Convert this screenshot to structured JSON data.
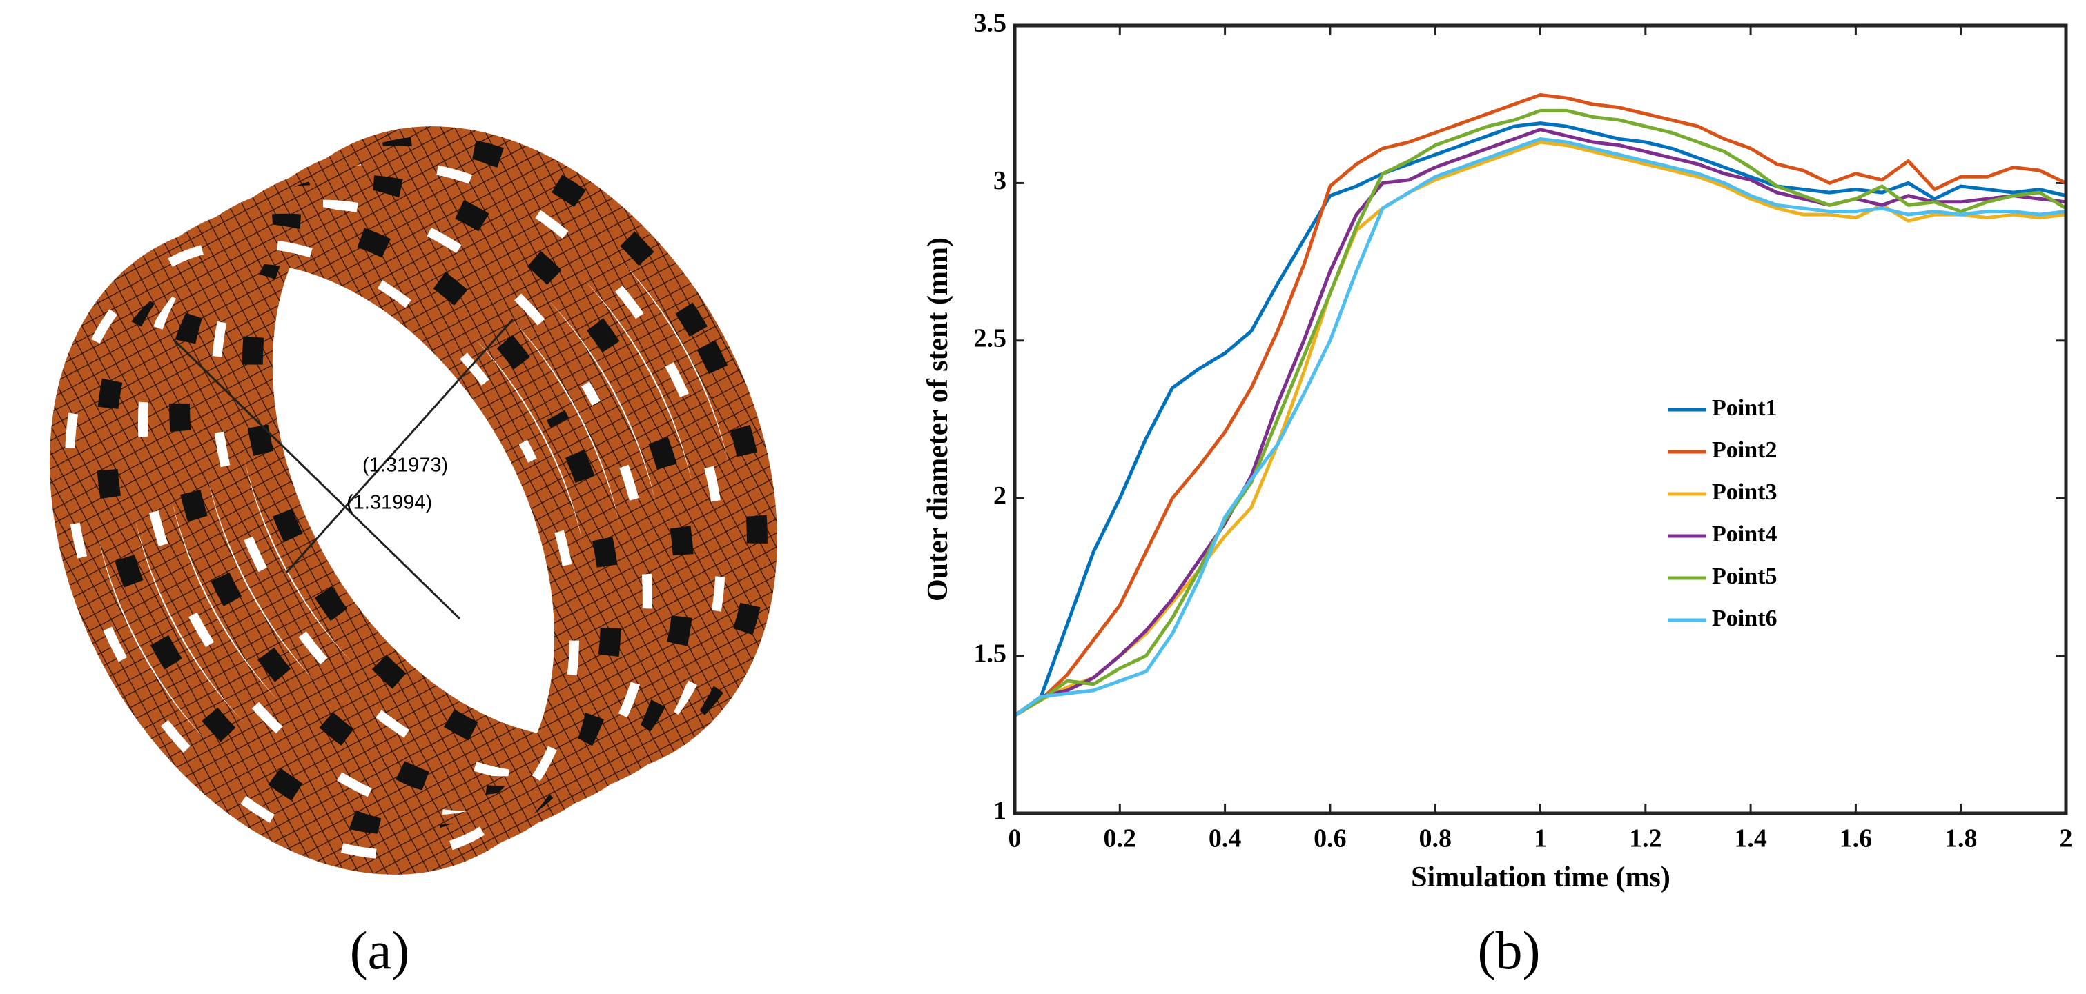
{
  "chart_data": {
    "type": "line",
    "xlabel": "Simulation time (ms)",
    "ylabel": "Outer diameter of stent (mm)",
    "x": [
      0,
      0.05,
      0.1,
      0.15,
      0.2,
      0.25,
      0.3,
      0.35,
      0.4,
      0.45,
      0.5,
      0.55,
      0.6,
      0.65,
      0.7,
      0.75,
      0.8,
      0.85,
      0.9,
      0.95,
      1,
      1.05,
      1.1,
      1.15,
      1.2,
      1.25,
      1.3,
      1.35,
      1.4,
      1.45,
      1.5,
      1.55,
      1.6,
      1.65,
      1.7,
      1.75,
      1.8,
      1.85,
      1.9,
      1.95,
      2
    ],
    "series": [
      {
        "name": "Point1",
        "color": "#0072bd",
        "values": [
          1.31,
          1.37,
          1.6,
          1.83,
          2.0,
          2.19,
          2.35,
          2.41,
          2.46,
          2.53,
          2.68,
          2.82,
          2.96,
          2.99,
          3.03,
          3.06,
          3.09,
          3.12,
          3.15,
          3.18,
          3.19,
          3.18,
          3.16,
          3.14,
          3.13,
          3.11,
          3.08,
          3.05,
          3.02,
          2.99,
          2.98,
          2.97,
          2.98,
          2.97,
          3.0,
          2.95,
          2.99,
          2.98,
          2.97,
          2.98,
          2.96
        ]
      },
      {
        "name": "Point2",
        "color": "#d95319",
        "values": [
          1.31,
          1.36,
          1.44,
          1.55,
          1.66,
          1.83,
          2.0,
          2.1,
          2.21,
          2.35,
          2.53,
          2.74,
          2.99,
          3.06,
          3.11,
          3.13,
          3.16,
          3.19,
          3.22,
          3.25,
          3.28,
          3.27,
          3.25,
          3.24,
          3.22,
          3.2,
          3.18,
          3.14,
          3.11,
          3.06,
          3.04,
          3.0,
          3.03,
          3.01,
          3.07,
          2.98,
          3.02,
          3.02,
          3.05,
          3.04,
          3.0
        ]
      },
      {
        "name": "Point3",
        "color": "#edb120",
        "values": [
          1.31,
          1.36,
          1.4,
          1.43,
          1.5,
          1.57,
          1.67,
          1.77,
          1.88,
          1.97,
          2.17,
          2.4,
          2.65,
          2.85,
          2.92,
          2.97,
          3.01,
          3.04,
          3.07,
          3.1,
          3.13,
          3.12,
          3.1,
          3.08,
          3.06,
          3.04,
          3.02,
          2.99,
          2.95,
          2.92,
          2.9,
          2.9,
          2.89,
          2.93,
          2.88,
          2.9,
          2.9,
          2.89,
          2.9,
          2.89,
          2.9
        ]
      },
      {
        "name": "Point4",
        "color": "#7e2f8e",
        "values": [
          1.31,
          1.37,
          1.39,
          1.43,
          1.5,
          1.58,
          1.68,
          1.8,
          1.92,
          2.07,
          2.3,
          2.5,
          2.72,
          2.9,
          3.0,
          3.01,
          3.05,
          3.08,
          3.11,
          3.14,
          3.17,
          3.15,
          3.13,
          3.12,
          3.1,
          3.08,
          3.06,
          3.03,
          3.01,
          2.97,
          2.95,
          2.93,
          2.95,
          2.93,
          2.96,
          2.94,
          2.94,
          2.95,
          2.96,
          2.95,
          2.94
        ]
      },
      {
        "name": "Point5",
        "color": "#77ac30",
        "values": [
          1.31,
          1.36,
          1.42,
          1.41,
          1.46,
          1.5,
          1.62,
          1.77,
          1.93,
          2.05,
          2.25,
          2.45,
          2.65,
          2.86,
          3.03,
          3.07,
          3.12,
          3.15,
          3.18,
          3.2,
          3.23,
          3.23,
          3.21,
          3.2,
          3.18,
          3.16,
          3.13,
          3.1,
          3.05,
          2.99,
          2.96,
          2.93,
          2.95,
          2.99,
          2.93,
          2.94,
          2.91,
          2.94,
          2.96,
          2.97,
          2.92
        ]
      },
      {
        "name": "Point6",
        "color": "#4dbeee",
        "values": [
          1.31,
          1.37,
          1.38,
          1.39,
          1.42,
          1.45,
          1.57,
          1.74,
          1.94,
          2.06,
          2.17,
          2.33,
          2.5,
          2.72,
          2.92,
          2.97,
          3.02,
          3.05,
          3.08,
          3.11,
          3.14,
          3.13,
          3.11,
          3.09,
          3.07,
          3.05,
          3.03,
          3.0,
          2.96,
          2.93,
          2.92,
          2.91,
          2.91,
          2.92,
          2.9,
          2.91,
          2.9,
          2.91,
          2.91,
          2.9,
          2.91
        ]
      }
    ],
    "xlim": [
      0,
      2
    ],
    "xticks": [
      0,
      0.2,
      0.4,
      0.6,
      0.8,
      1,
      1.2,
      1.4,
      1.6,
      1.8,
      2
    ],
    "ylim": [
      1,
      3.5
    ],
    "yticks": [
      1,
      1.5,
      2,
      2.5,
      3,
      3.5
    ],
    "legend": "right",
    "grid": false
  },
  "mesh_annotations": [
    "(1.31973)",
    "(1.31994)"
  ],
  "panel_labels": [
    "(a)",
    "(b)"
  ]
}
